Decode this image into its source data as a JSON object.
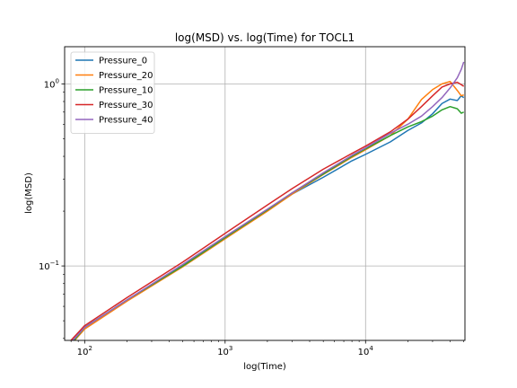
{
  "chart_data": {
    "type": "line",
    "title": "log(MSD) vs. log(Time) for TOCL1",
    "xlabel": "log(Time)",
    "ylabel": "log(MSD)",
    "xscale": "log",
    "yscale": "log",
    "xlim": [
      72,
      51000
    ],
    "ylim": [
      0.039,
      1.6
    ],
    "x_ticks": [
      {
        "value": 100,
        "base": "10",
        "exp": "2"
      },
      {
        "value": 1000,
        "base": "10",
        "exp": "3"
      },
      {
        "value": 10000,
        "base": "10",
        "exp": "4"
      }
    ],
    "y_ticks": [
      {
        "value": 0.1,
        "base": "10",
        "exp": "−1"
      },
      {
        "value": 1,
        "base": "10",
        "exp": "0"
      }
    ],
    "grid": true,
    "legend_position": "top-left",
    "series": [
      {
        "name": "Pressure_0",
        "color": "#1f77b4",
        "points": [
          [
            75,
            0.036
          ],
          [
            100,
            0.046
          ],
          [
            200,
            0.065
          ],
          [
            500,
            0.101
          ],
          [
            1000,
            0.143
          ],
          [
            2000,
            0.202
          ],
          [
            3000,
            0.248
          ],
          [
            5000,
            0.307
          ],
          [
            8000,
            0.378
          ],
          [
            10000,
            0.41
          ],
          [
            15000,
            0.48
          ],
          [
            20000,
            0.555
          ],
          [
            25000,
            0.61
          ],
          [
            30000,
            0.685
          ],
          [
            35000,
            0.78
          ],
          [
            40000,
            0.825
          ],
          [
            45000,
            0.81
          ],
          [
            48000,
            0.86
          ],
          [
            50000,
            0.84
          ]
        ]
      },
      {
        "name": "Pressure_20",
        "color": "#ff7f0e",
        "points": [
          [
            75,
            0.035
          ],
          [
            100,
            0.045
          ],
          [
            200,
            0.064
          ],
          [
            500,
            0.099
          ],
          [
            1000,
            0.141
          ],
          [
            2000,
            0.2
          ],
          [
            3000,
            0.248
          ],
          [
            5000,
            0.318
          ],
          [
            8000,
            0.395
          ],
          [
            10000,
            0.435
          ],
          [
            15000,
            0.52
          ],
          [
            20000,
            0.64
          ],
          [
            25000,
            0.82
          ],
          [
            30000,
            0.93
          ],
          [
            35000,
            1.0
          ],
          [
            40000,
            1.03
          ],
          [
            45000,
            0.92
          ],
          [
            48000,
            0.86
          ],
          [
            50000,
            0.87
          ]
        ]
      },
      {
        "name": "Pressure_10",
        "color": "#2ca02c",
        "points": [
          [
            75,
            0.035
          ],
          [
            100,
            0.046
          ],
          [
            200,
            0.065
          ],
          [
            500,
            0.1
          ],
          [
            1000,
            0.143
          ],
          [
            2000,
            0.203
          ],
          [
            3000,
            0.252
          ],
          [
            5000,
            0.32
          ],
          [
            8000,
            0.4
          ],
          [
            10000,
            0.44
          ],
          [
            15000,
            0.52
          ],
          [
            20000,
            0.58
          ],
          [
            25000,
            0.62
          ],
          [
            30000,
            0.665
          ],
          [
            35000,
            0.72
          ],
          [
            40000,
            0.75
          ],
          [
            45000,
            0.73
          ],
          [
            48000,
            0.69
          ],
          [
            50000,
            0.7
          ]
        ]
      },
      {
        "name": "Pressure_30",
        "color": "#d62728",
        "points": [
          [
            75,
            0.037
          ],
          [
            100,
            0.047
          ],
          [
            200,
            0.067
          ],
          [
            500,
            0.105
          ],
          [
            1000,
            0.151
          ],
          [
            2000,
            0.216
          ],
          [
            3000,
            0.266
          ],
          [
            5000,
            0.34
          ],
          [
            8000,
            0.415
          ],
          [
            10000,
            0.455
          ],
          [
            15000,
            0.545
          ],
          [
            20000,
            0.64
          ],
          [
            25000,
            0.75
          ],
          [
            30000,
            0.86
          ],
          [
            35000,
            0.96
          ],
          [
            40000,
            1.0
          ],
          [
            45000,
            1.02
          ],
          [
            48000,
            0.99
          ],
          [
            50000,
            0.97
          ]
        ]
      },
      {
        "name": "Pressure_40",
        "color": "#9467bd",
        "points": [
          [
            75,
            0.036
          ],
          [
            100,
            0.046
          ],
          [
            200,
            0.065
          ],
          [
            500,
            0.102
          ],
          [
            1000,
            0.145
          ],
          [
            2000,
            0.205
          ],
          [
            3000,
            0.252
          ],
          [
            5000,
            0.325
          ],
          [
            8000,
            0.405
          ],
          [
            10000,
            0.445
          ],
          [
            15000,
            0.535
          ],
          [
            20000,
            0.6
          ],
          [
            25000,
            0.665
          ],
          [
            30000,
            0.75
          ],
          [
            35000,
            0.84
          ],
          [
            40000,
            0.95
          ],
          [
            45000,
            1.08
          ],
          [
            48000,
            1.2
          ],
          [
            50000,
            1.32
          ]
        ]
      }
    ]
  }
}
